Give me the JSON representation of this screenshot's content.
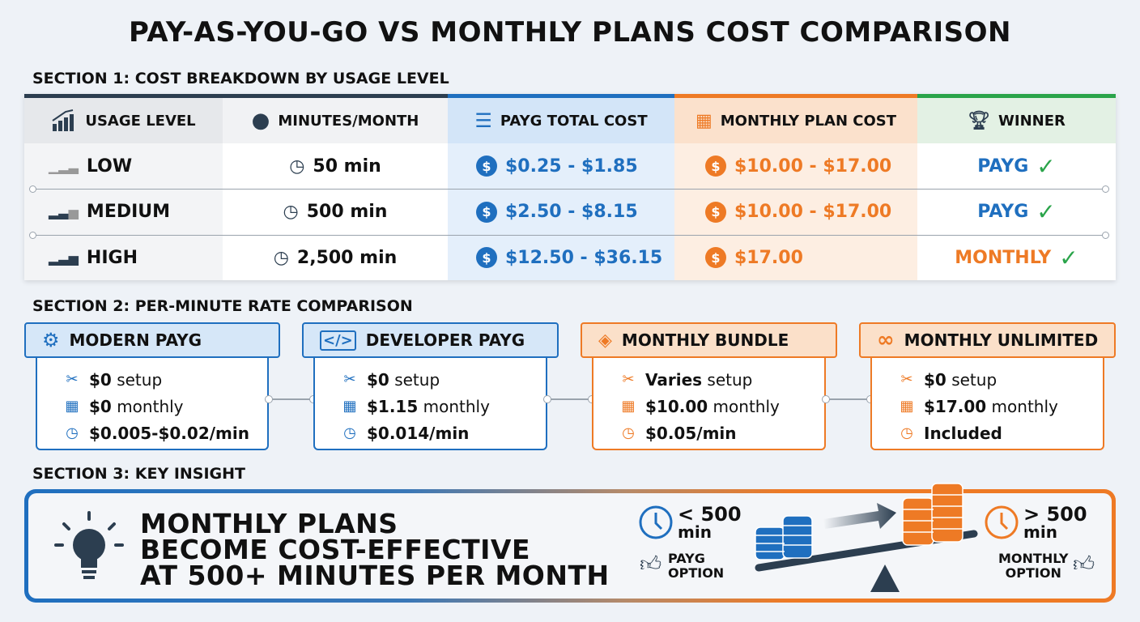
{
  "title": "PAY-AS-YOU-GO VS MONTHLY PLANS COST COMPARISON",
  "colors": {
    "blue": "#1f6fbf",
    "orange": "#ee7a25",
    "green": "#2aa44a",
    "dark": "#2c3e50"
  },
  "section1": {
    "label": "SECTION 1: COST BREAKDOWN BY USAGE LEVEL",
    "headers": [
      "USAGE LEVEL",
      "MINUTES/MONTH",
      "PAYG TOTAL COST",
      "MONTHLY PLAN COST",
      "WINNER"
    ],
    "rows": [
      {
        "level": "LOW",
        "minutes": "50 min",
        "payg": "$0.25 - $1.85",
        "monthly": "$10.00 - $17.00",
        "winner": "PAYG"
      },
      {
        "level": "MEDIUM",
        "minutes": "500 min",
        "payg": "$2.50 - $8.15",
        "monthly": "$10.00 - $17.00",
        "winner": "PAYG"
      },
      {
        "level": "HIGH",
        "minutes": "2,500 min",
        "payg": "$12.50 - $36.15",
        "monthly": "$17.00",
        "winner": "MONTHLY"
      }
    ]
  },
  "section2": {
    "label": "SECTION 2: PER-MINUTE RATE COMPARISON",
    "cards": [
      {
        "name": "MODERN PAYG",
        "setup_value": "$0",
        "setup_label": " setup",
        "monthly_value": "$0",
        "monthly_label": " monthly",
        "rate": "$0.005-$0.02/min"
      },
      {
        "name": "DEVELOPER PAYG",
        "setup_value": "$0",
        "setup_label": " setup",
        "monthly_value": "$1.15",
        "monthly_label": " monthly",
        "rate": "$0.014/min"
      },
      {
        "name": "MONTHLY BUNDLE",
        "setup_value": "Varies",
        "setup_label": " setup",
        "monthly_value": "$10.00",
        "monthly_label": " monthly",
        "rate": "$0.05/min"
      },
      {
        "name": "MONTHLY UNLIMITED",
        "setup_value": "$0",
        "setup_label": " setup",
        "monthly_value": "$17.00",
        "monthly_label": " monthly",
        "rate": "Included"
      }
    ]
  },
  "section3": {
    "label": "SECTION 3: KEY INSIGHT",
    "lines": [
      "MONTHLY PLANS",
      "BECOME COST-EFFECTIVE",
      "AT 500+ MINUTES PER MONTH"
    ],
    "left_threshold": "< 500",
    "left_unit": "min",
    "left_option": [
      "PAYG",
      "OPTION"
    ],
    "right_threshold": "> 500",
    "right_unit": "min",
    "right_option": [
      "MONTHLY",
      "OPTION"
    ]
  }
}
